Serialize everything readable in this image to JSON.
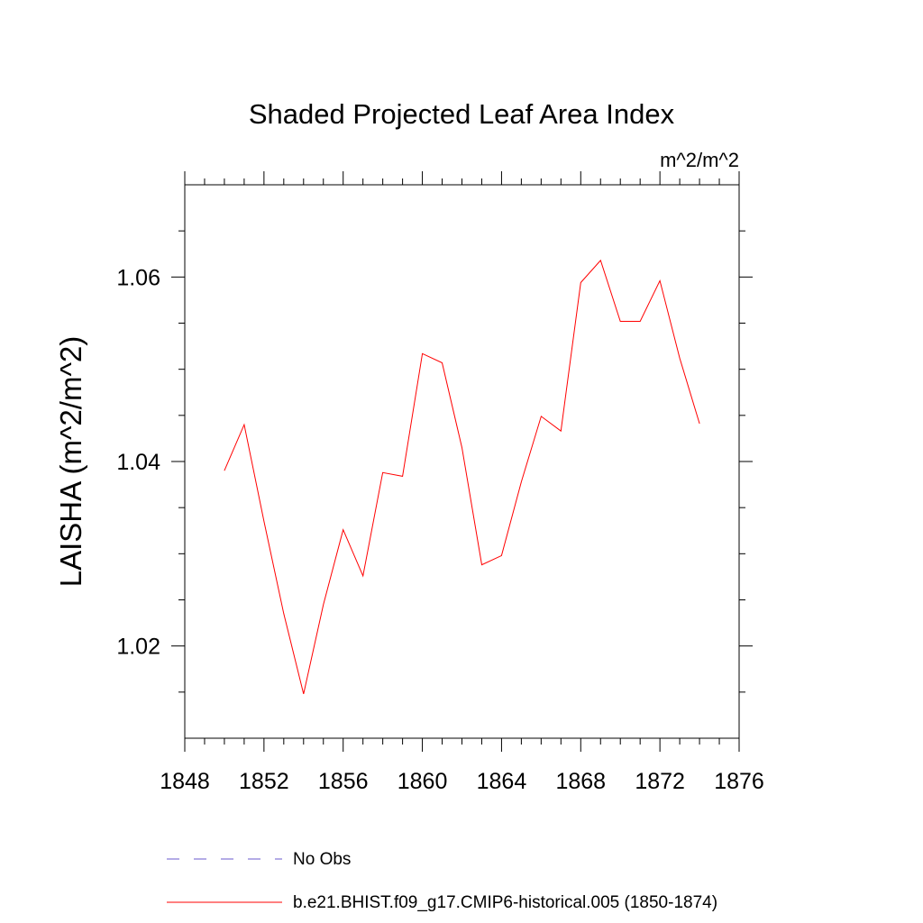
{
  "chart_data": {
    "type": "line",
    "title": "Shaded Projected Leaf Area Index",
    "units_label": "m^2/m^2",
    "ylabel": "LAISHA  (m^2/m^2)",
    "xlabel": "",
    "xlim": [
      1848,
      1876
    ],
    "ylim": [
      1.01,
      1.07
    ],
    "x_ticks": [
      1848,
      1852,
      1856,
      1860,
      1864,
      1868,
      1872,
      1876
    ],
    "x_tick_labels": [
      "1848",
      "1852",
      "1856",
      "1860",
      "1864",
      "1868",
      "1872",
      "1876"
    ],
    "y_ticks": [
      1.02,
      1.04,
      1.06
    ],
    "y_tick_labels": [
      "1.02",
      "1.04",
      "1.06"
    ],
    "y_minor_step": 0.005,
    "grid": false,
    "series": [
      {
        "name": "b.e21.BHIST.f09_g17.CMIP6-historical.005 (1850-1874)",
        "color": "#ff0000",
        "style": "solid",
        "x": [
          1850,
          1851,
          1852,
          1853,
          1854,
          1855,
          1856,
          1857,
          1858,
          1859,
          1860,
          1861,
          1862,
          1863,
          1864,
          1865,
          1866,
          1867,
          1868,
          1869,
          1870,
          1871,
          1872,
          1873,
          1874
        ],
        "values": [
          1.039,
          1.044,
          1.0335,
          1.0235,
          1.0148,
          1.0245,
          1.0326,
          1.0276,
          1.0388,
          1.0384,
          1.0517,
          1.0507,
          1.0415,
          1.0288,
          1.0298,
          1.0378,
          1.0449,
          1.0433,
          1.0594,
          1.0618,
          1.0552,
          1.0552,
          1.0596,
          1.0512,
          1.0441
        ]
      }
    ],
    "legend": {
      "placement": "bottom",
      "entries": [
        {
          "label": "No Obs",
          "color": "#6a5acd",
          "style": "dashed"
        },
        {
          "label": "b.e21.BHIST.f09_g17.CMIP6-historical.005 (1850-1874)",
          "color": "#ff0000",
          "style": "solid"
        }
      ]
    }
  }
}
